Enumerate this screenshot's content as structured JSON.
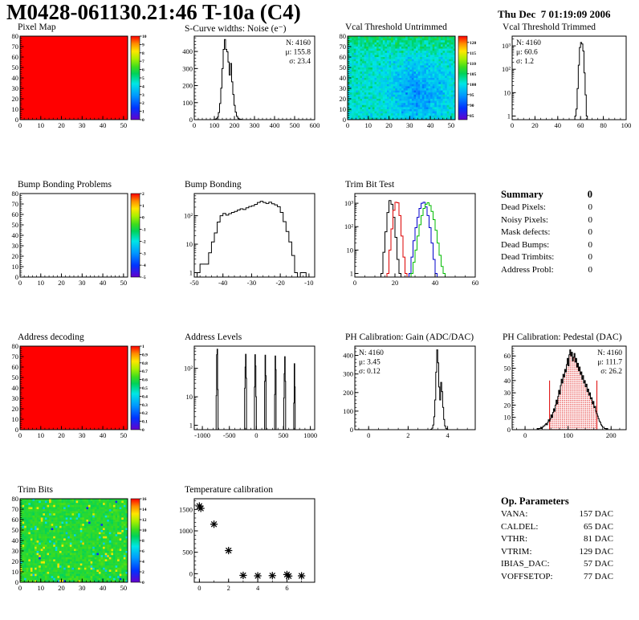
{
  "header": {
    "title": "M0428-061130.21:46 T-10a (C4)",
    "datetime": "Thu Dec  7 01:19:09 2006"
  },
  "palette_stops": [
    [
      0.0,
      102,
      0,
      204
    ],
    [
      0.14,
      0,
      51,
      255
    ],
    [
      0.29,
      0,
      153,
      255
    ],
    [
      0.43,
      0,
      230,
      230
    ],
    [
      0.55,
      0,
      210,
      90
    ],
    [
      0.63,
      60,
      220,
      30
    ],
    [
      0.73,
      170,
      240,
      0
    ],
    [
      0.82,
      255,
      230,
      0
    ],
    [
      0.91,
      255,
      140,
      0
    ],
    [
      1.0,
      255,
      0,
      0
    ]
  ],
  "summary": {
    "title": "Summary",
    "total": "0",
    "rows": [
      {
        "label": "Dead Pixels:",
        "value": "0"
      },
      {
        "label": "Noisy Pixels:",
        "value": "0"
      },
      {
        "label": "Mask defects:",
        "value": "0"
      },
      {
        "label": "Dead Bumps:",
        "value": "0"
      },
      {
        "label": "Dead Trimbits:",
        "value": "0"
      },
      {
        "label": "Address Probl:",
        "value": "0"
      }
    ]
  },
  "op_parameters": {
    "title": "Op. Parameters",
    "rows": [
      {
        "label": "VANA:",
        "value": "157 DAC"
      },
      {
        "label": "CALDEL:",
        "value": "65 DAC"
      },
      {
        "label": "VTHR:",
        "value": "81 DAC"
      },
      {
        "label": "VTRIM:",
        "value": "129 DAC"
      },
      {
        "label": "IBIAS_DAC:",
        "value": "57 DAC"
      },
      {
        "label": "VOFFSETOP:",
        "value": "77 DAC"
      }
    ]
  },
  "chart_data": [
    {
      "id": "pixel-map",
      "title": "Pixel Map",
      "type": "heatmap",
      "x": {
        "min": 0,
        "max": 52,
        "ticks": [
          0,
          10,
          20,
          30,
          40,
          50
        ],
        "minor": 2
      },
      "y": {
        "min": 0,
        "max": 80,
        "ticks": [
          0,
          10,
          20,
          30,
          40,
          50,
          60,
          70,
          80
        ],
        "minor": 2
      },
      "colorbar": {
        "min": 0,
        "max": 10,
        "ticks": [
          10,
          9,
          8,
          7,
          6,
          5,
          4,
          3,
          2,
          1,
          0
        ]
      },
      "fill": {
        "mode": "uniform",
        "t": 1
      }
    },
    {
      "id": "scurve-noise",
      "title": "S-Curve widths: Noise (e⁻)",
      "type": "histogram",
      "x": {
        "min": 0,
        "max": 600,
        "ticks": [
          0,
          100,
          200,
          300,
          400,
          500,
          600
        ],
        "minor": 20
      },
      "y": {
        "scale": "linear",
        "min": 0,
        "max": 490,
        "ticks": [
          0,
          100,
          200,
          300,
          400
        ],
        "minor": 20
      },
      "bins": {
        "start": 96,
        "width": 6,
        "heights": [
          1,
          2,
          6,
          15,
          42,
          95,
          185,
          300,
          412,
          470,
          412,
          398,
          338,
          262,
          330,
          222,
          148,
          84,
          44,
          20,
          9,
          4,
          2,
          1
        ]
      },
      "stats": {
        "pos": "right",
        "lines": [
          {
            "text": "N: 4160",
            "color": "#000000"
          },
          {
            "text": "μ: 155.8",
            "color": "#000000"
          },
          {
            "text": "σ: 23.4",
            "color": "#000000"
          }
        ]
      }
    },
    {
      "id": "vcal-untrimmed",
      "title": "Vcal Threshold Untrimmed",
      "type": "heatmap",
      "x": {
        "min": 0,
        "max": 52,
        "ticks": [
          0,
          10,
          20,
          30,
          40,
          50
        ],
        "minor": 2
      },
      "y": {
        "min": 0,
        "max": 80,
        "ticks": [
          0,
          10,
          20,
          30,
          40,
          50,
          60,
          70,
          80
        ],
        "minor": 2
      },
      "colorbar": {
        "min": 83,
        "max": 123,
        "ticks": [
          120,
          115,
          110,
          105,
          100,
          95,
          90,
          85
        ]
      },
      "fill": {
        "mode": "noise",
        "seed": 11,
        "base": 0.45,
        "spread": 0.085,
        "top_bias": 0.1,
        "blob": {
          "x": 0.65,
          "y": 0.66,
          "rx": 0.26,
          "ry": 0.34,
          "amp": 0.16
        }
      }
    },
    {
      "id": "vcal-trimmed",
      "title": "Vcal Threshold Trimmed",
      "type": "histogram",
      "x": {
        "min": 0,
        "max": 100,
        "ticks": [
          0,
          20,
          40,
          60,
          80,
          100
        ],
        "minor": 5
      },
      "y": {
        "scale": "log",
        "log_min": 0.7,
        "max": 2600
      },
      "bins": {
        "start": 55,
        "width": 1,
        "heights": [
          1,
          2,
          15,
          150,
          850,
          1400,
          1200,
          600,
          70,
          8,
          1
        ]
      },
      "stats": {
        "pos": "left",
        "lines": [
          {
            "text": "N: 4160",
            "color": "#000000"
          },
          {
            "text": "μ: 60.6",
            "color": "#000000"
          },
          {
            "text": "σ:  1.2",
            "color": "#000000"
          }
        ]
      }
    },
    {
      "id": "bump-problems",
      "title": "Bump Bonding Problems",
      "type": "heatmap",
      "x": {
        "min": 0,
        "max": 52,
        "ticks": [
          0,
          10,
          20,
          30,
          40,
          50
        ],
        "minor": 2
      },
      "y": {
        "min": 0,
        "max": 80,
        "ticks": [
          0,
          10,
          20,
          30,
          40,
          50,
          60,
          70,
          80
        ],
        "minor": 2
      },
      "colorbar": {
        "min": -5,
        "max": 2,
        "ticks": [
          2,
          1,
          0,
          -1,
          -2,
          -3,
          -4,
          -5
        ]
      },
      "fill": {
        "mode": "none"
      }
    },
    {
      "id": "bump-bonding",
      "title": "Bump Bonding",
      "type": "histogram",
      "x": {
        "min": -50,
        "max": -8,
        "ticks": [
          -50,
          -40,
          -30,
          -20,
          -10
        ],
        "minor": 2
      },
      "y": {
        "scale": "log",
        "log_min": 0.7,
        "max": 600
      },
      "bins": {
        "start": -49,
        "width": 1,
        "heights": [
          1,
          2,
          2,
          2,
          5,
          12,
          25,
          60,
          100,
          120,
          105,
          118,
          130,
          142,
          158,
          175,
          165,
          190,
          210,
          222,
          250,
          292,
          320,
          292,
          268,
          298,
          262,
          240,
          208,
          130,
          62,
          28,
          12,
          4,
          1,
          0,
          1,
          1,
          0
        ]
      }
    },
    {
      "id": "trim-bit-test",
      "title": "Trim Bit Test",
      "type": "histogram",
      "full_baseline": true,
      "x": {
        "min": 0,
        "max": 60,
        "ticks": [
          0,
          20,
          40,
          60
        ],
        "minor": 5
      },
      "y": {
        "scale": "log",
        "log_min": 0.7,
        "max": 2600
      },
      "series": [
        {
          "color": "#000000",
          "start": 13,
          "width": 1,
          "heights": [
            1,
            8,
            60,
            400,
            1300,
            900,
            250,
            35,
            4,
            1
          ]
        },
        {
          "color": "#dd0000",
          "start": 16,
          "width": 1,
          "heights": [
            1,
            10,
            80,
            500,
            1100,
            1050,
            300,
            40,
            5,
            1
          ]
        },
        {
          "color": "#0000cc",
          "start": 27,
          "width": 1,
          "heights": [
            1,
            5,
            25,
            90,
            250,
            600,
            1000,
            1100,
            700,
            300,
            90,
            20,
            4,
            1
          ]
        },
        {
          "color": "#00bb00",
          "start": 28,
          "width": 1,
          "heights": [
            1,
            3,
            10,
            40,
            120,
            300,
            600,
            900,
            1050,
            800,
            450,
            200,
            70,
            20,
            6,
            2,
            1
          ]
        }
      ]
    },
    {
      "id": "address-decoding",
      "title": "Address decoding",
      "type": "heatmap",
      "x": {
        "min": 0,
        "max": 52,
        "ticks": [
          0,
          10,
          20,
          30,
          40,
          50
        ],
        "minor": 2
      },
      "y": {
        "min": 0,
        "max": 80,
        "ticks": [
          0,
          10,
          20,
          30,
          40,
          50,
          60,
          70,
          80
        ],
        "minor": 2
      },
      "colorbar": {
        "min": 0,
        "max": 1,
        "ticks": [
          1,
          0.9,
          0.8,
          0.7,
          0.6,
          0.5,
          0.4,
          0.3,
          0.2,
          0.1,
          0
        ]
      },
      "fill": {
        "mode": "uniform",
        "t": 1
      }
    },
    {
      "id": "address-levels",
      "title": "Address Levels",
      "type": "histogram",
      "x": {
        "min": -1150,
        "max": 1080,
        "ticks": [
          -1000,
          -500,
          0,
          500,
          1000
        ],
        "minor": 100
      },
      "y": {
        "scale": "log",
        "log_min": 0.7,
        "max": 600
      },
      "segments": [
        {
          "start": -745,
          "width": 9,
          "heights": [
            11,
            300,
            470,
            18
          ]
        },
        {
          "start": -218,
          "width": 9,
          "heights": [
            20,
            110,
            310,
            45
          ]
        },
        {
          "start": -36,
          "width": 9,
          "heights": [
            22,
            300,
            120,
            10
          ]
        },
        {
          "start": 152,
          "width": 9,
          "heights": [
            35,
            290,
            55
          ]
        },
        {
          "start": 338,
          "width": 9,
          "heights": [
            12,
            270,
            90
          ]
        },
        {
          "start": 506,
          "width": 9,
          "heights": [
            9,
            65,
            255,
            35
          ]
        },
        {
          "start": 692,
          "width": 9,
          "heights": [
            6,
            145,
            22
          ]
        }
      ]
    },
    {
      "id": "ph-gain",
      "title": "PH Calibration: Gain (ADC/DAC)",
      "type": "histogram",
      "x": {
        "min": -0.7,
        "max": 5.4,
        "ticks": [
          0,
          2,
          4
        ],
        "minor": 0.5
      },
      "y": {
        "scale": "linear",
        "min": 0,
        "max": 450,
        "ticks": [
          0,
          100,
          200,
          300,
          400
        ],
        "minor": 20
      },
      "bins": {
        "start": 3.15,
        "width": 0.05,
        "heights": [
          2,
          8,
          25,
          70,
          160,
          310,
          430,
          360,
          230,
          160,
          255,
          205,
          120,
          55,
          20,
          7,
          2
        ]
      },
      "stats": {
        "pos": "left",
        "lines": [
          {
            "text": "N: 4160",
            "color": "#000000"
          },
          {
            "text": "μ: 3.45",
            "color": "#000000"
          },
          {
            "text": "σ: 0.12",
            "color": "#000000"
          }
        ]
      }
    },
    {
      "id": "ph-pedestal",
      "title": "PH Calibration: Pedestal (DAC)",
      "type": "histogram",
      "x": {
        "min": -30,
        "max": 235,
        "ticks": [
          0,
          100,
          200
        ],
        "minor": 20
      },
      "y": {
        "scale": "linear",
        "min": 0,
        "max": 68,
        "ticks": [
          0,
          10,
          20,
          30,
          40,
          50,
          60
        ],
        "minor": 2
      },
      "bins": {
        "start": 28,
        "width": 2,
        "heights": [
          1,
          0,
          1,
          1,
          2,
          1,
          2,
          3,
          3,
          4,
          5,
          4,
          6,
          8,
          7,
          9,
          12,
          10,
          14,
          17,
          15,
          20,
          24,
          21,
          27,
          32,
          29,
          36,
          41,
          38,
          45,
          43,
          49,
          47,
          53,
          58,
          52,
          61,
          65,
          60,
          63,
          56,
          59,
          62,
          55,
          58,
          51,
          54,
          48,
          51,
          45,
          47,
          41,
          44,
          38,
          40,
          35,
          37,
          31,
          33,
          28,
          30,
          25,
          26,
          21,
          23,
          18,
          19,
          15,
          13,
          11,
          9,
          7,
          6,
          4,
          3,
          2,
          2,
          1,
          1,
          0,
          1
        ]
      },
      "red_fill": {
        "from": 57,
        "to": 167,
        "line_height": 40,
        "color": "#dd0000"
      },
      "stats": {
        "pos": "right",
        "lines": [
          {
            "text": "N: 4160",
            "color": "#000000"
          },
          {
            "text": "μ: 111.7",
            "color": "#dd0000"
          },
          {
            "text": "σ: 26.2",
            "color": "#dd0000"
          }
        ]
      }
    },
    {
      "id": "trim-bits",
      "title": "Trim Bits",
      "type": "heatmap",
      "x": {
        "min": 0,
        "max": 52,
        "ticks": [
          0,
          10,
          20,
          30,
          40,
          50
        ],
        "minor": 2
      },
      "y": {
        "min": 0,
        "max": 80,
        "ticks": [
          0,
          10,
          20,
          30,
          40,
          50,
          60,
          70,
          80
        ],
        "minor": 2
      },
      "colorbar": {
        "min": 0,
        "max": 16,
        "ticks": [
          16,
          14,
          12,
          10,
          8,
          6,
          4,
          2,
          0
        ]
      },
      "fill": {
        "mode": "noise",
        "seed": 5,
        "base": 0.6,
        "spread": 0.05,
        "spikes": true
      }
    },
    {
      "id": "temperature-calibration",
      "title": "Temperature calibration",
      "type": "scatter",
      "x": {
        "min": -0.35,
        "max": 7.9,
        "ticks": [
          0,
          2,
          4,
          6
        ],
        "minor": 1
      },
      "y": {
        "scale": "linear",
        "min": -200,
        "max": 1750,
        "ticks": [
          0,
          500,
          1000,
          1500
        ],
        "minor": 100
      },
      "points": [
        [
          0,
          1580
        ],
        [
          0.1,
          1525
        ],
        [
          1,
          1155
        ],
        [
          2,
          540
        ],
        [
          3,
          -40
        ],
        [
          4,
          -50
        ],
        [
          5,
          -45
        ],
        [
          6,
          -20
        ],
        [
          6.12,
          -55
        ],
        [
          7,
          -50
        ]
      ]
    }
  ]
}
